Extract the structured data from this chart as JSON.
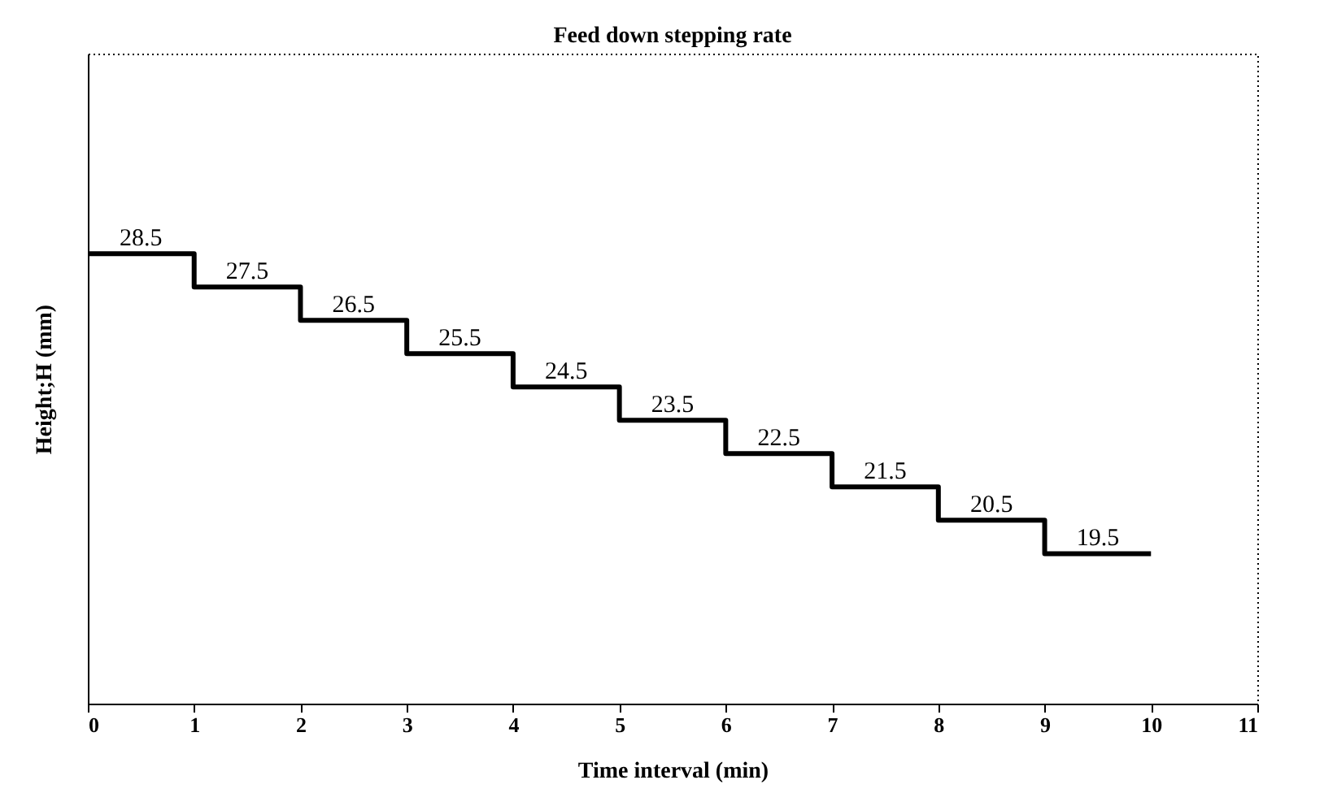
{
  "chart_data": {
    "type": "step",
    "title": "Feed down stepping rate",
    "xlabel": "Time interval (min)",
    "ylabel": "Height;H (mm)",
    "x": [
      0,
      1,
      2,
      3,
      4,
      5,
      6,
      7,
      8,
      9,
      10
    ],
    "values": [
      28.5,
      27.5,
      26.5,
      25.5,
      24.5,
      23.5,
      22.5,
      21.5,
      20.5,
      19.5,
      19.5
    ],
    "value_labels": [
      "28.5",
      "27.5",
      "26.5",
      "25.5",
      "24.5",
      "23.5",
      "22.5",
      "21.5",
      "20.5",
      "19.5",
      null
    ],
    "color": "#000000",
    "xlim": [
      0,
      11
    ],
    "xticks": [
      0,
      1,
      2,
      3,
      4,
      5,
      6,
      7,
      8,
      9,
      10,
      11
    ],
    "ylim": [
      15,
      34.5
    ],
    "tick_labels": "x",
    "grid": false
  }
}
